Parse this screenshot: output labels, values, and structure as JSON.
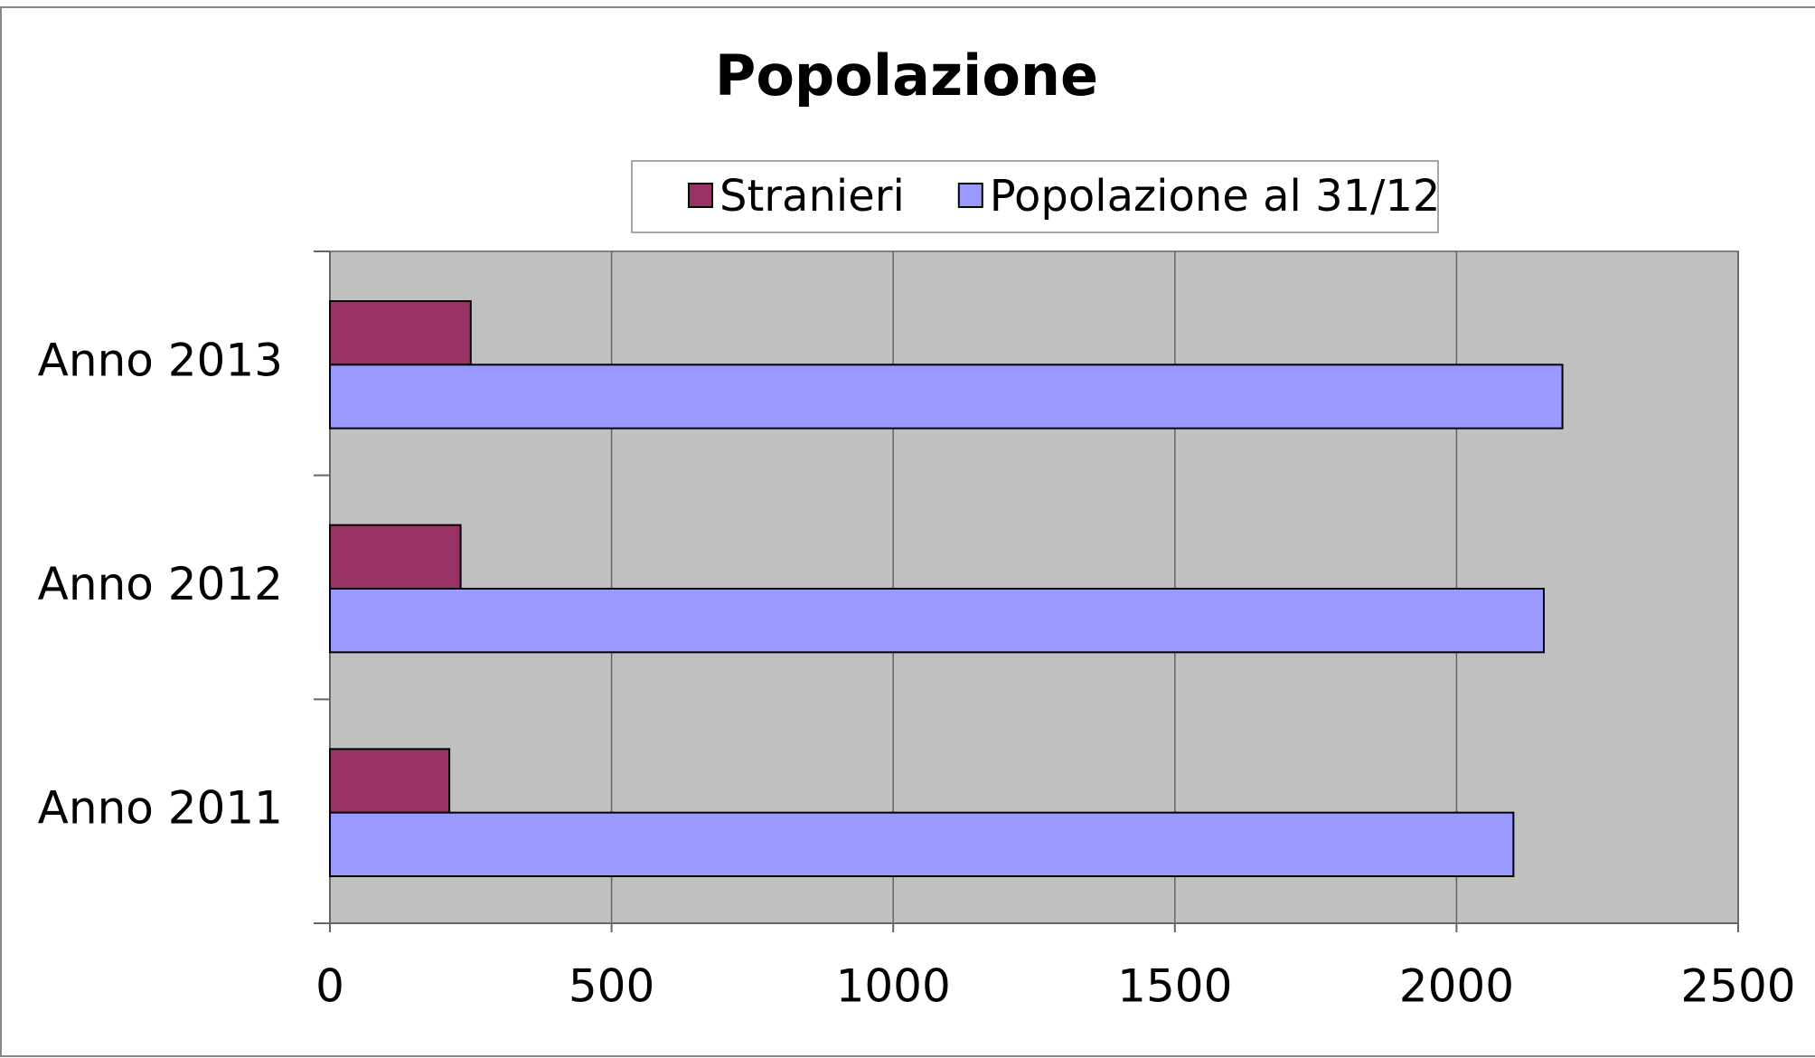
{
  "chart_data": {
    "type": "barh",
    "title": "Popolazione",
    "categories": [
      "Anno 2011",
      "Anno 2012",
      "Anno 2013"
    ],
    "series": [
      {
        "name": "Stranieri",
        "color": "#993366",
        "values": [
          212,
          232,
          250
        ]
      },
      {
        "name": "Popolazione al 31/12",
        "color": "#9999ff",
        "values": [
          2101,
          2155,
          2188
        ]
      }
    ],
    "xlim": [
      0,
      2500
    ],
    "xticks": [
      0,
      500,
      1000,
      1500,
      2000,
      2500
    ],
    "grid": true,
    "legend": "top"
  }
}
